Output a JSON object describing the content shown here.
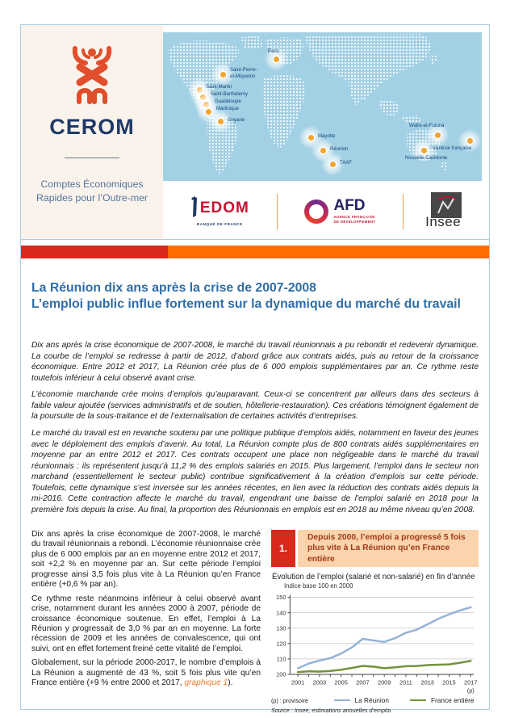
{
  "header": {
    "logo_text": "CEROM",
    "tagline_line1": "Comptes Économiques",
    "tagline_line2": "Rapides pour l’Outre-mer",
    "partners": {
      "iedom": {
        "name": "EDOM",
        "sub": "BANQUE DE FRANCE"
      },
      "afd": {
        "name": "AFD",
        "sub1": "AGENCE FRANÇAISE",
        "sub2": "DE DÉVELOPPEMENT"
      },
      "insee": {
        "name": "Insee"
      }
    }
  },
  "map": {
    "markers": [
      {
        "name": "paris",
        "label": "Paris",
        "dot": [
          140,
          33
        ],
        "label_xy": [
          130,
          21
        ]
      },
      {
        "name": "saint-pierre-et-miquelon",
        "label": "Saint-Pierre-\net-Miquelon",
        "dot": [
          74,
          52
        ],
        "label_xy": [
          83,
          44
        ]
      },
      {
        "name": "saint-martin",
        "label": "Saint-Martin",
        "dot": [
          45,
          71
        ],
        "label_xy": [
          53,
          65
        ]
      },
      {
        "name": "saint-barthelemy",
        "label": "Saint-Barthélemy",
        "dot": [
          49,
          80
        ],
        "label_xy": [
          59,
          74
        ]
      },
      {
        "name": "guadeloupe",
        "label": "Guadeloupe",
        "dot": [
          53,
          89
        ],
        "label_xy": [
          64,
          83
        ]
      },
      {
        "name": "martinique",
        "label": "Martinique",
        "dot": [
          56,
          98
        ],
        "label_xy": [
          66,
          92
        ]
      },
      {
        "name": "guyane",
        "label": "Guyane",
        "dot": [
          71,
          110
        ],
        "label_xy": [
          80,
          106
        ]
      },
      {
        "name": "mayotte",
        "label": "Mayotte",
        "dot": [
          183,
          130
        ],
        "label_xy": [
          192,
          126
        ]
      },
      {
        "name": "reunion",
        "label": "Réunion",
        "dot": [
          198,
          146
        ],
        "label_xy": [
          207,
          142
        ]
      },
      {
        "name": "taaf",
        "label": "TAAF",
        "dot": [
          210,
          163
        ],
        "label_xy": [
          219,
          159
        ]
      },
      {
        "name": "wallis-et-futuna",
        "label": "Wallis-et-Futuna",
        "dot": [
          340,
          127
        ],
        "label_xy": [
          305,
          113
        ]
      },
      {
        "name": "polynesie-francaise",
        "label": "Polynésie française",
        "dot": [
          380,
          134
        ],
        "label_xy": [
          330,
          141
        ]
      },
      {
        "name": "nouvelle-caledonie",
        "label": "Nouvelle-Calédonie",
        "dot": [
          323,
          146
        ],
        "label_xy": [
          300,
          153
        ]
      }
    ]
  },
  "title": {
    "line1": "La Réunion dix ans après la crise de 2007-2008",
    "line2": "L’emploi public influe fortement sur la dynamique du marché du travail"
  },
  "intro": {
    "paragraphs": [
      "Dix ans après la crise économique de 2007-2008, le marché du travail réunionnais a pu rebondir et redevenir dynamique. La courbe de l’emploi se redresse à partir de 2012, d’abord grâce aux contrats aidés, puis au retour de la croissance économique. Entre 2012 et 2017, La Réunion crée plus de 6 000 emplois supplémentaires par an. Ce rythme reste toutefois inférieur à celui observé avant crise.",
      "L’économie marchande crée moins d’emplois qu’auparavant. Ceux-ci se concentrent par ailleurs dans des secteurs à faible valeur ajoutée (services administratifs et de soutien, hôtellerie-restauration). Ces créations témoignent également de la poursuite de la sous-traitance et de l’externalisation de certaines activités d’entreprises.",
      "Le marché du travail est en revanche soutenu par une politique publique d’emplois aidés, notamment en faveur des jeunes avec le déploiement des emplois d’avenir. Au total, La Réunion compte plus de 800 contrats aidés supplémentaires en moyenne par an entre 2012 et 2017. Ces contrats occupent une place non négligeable dans le marché du travail réunionnais : ils représentent jusqu’à 11,2 % des emplois salariés en 2015. Plus largement, l’emploi dans le secteur non marchand (essentiellement le secteur public) contribue significativement à la création d’emplois sur cette période. Toutefois, cette dynamique s’est inversée sur les années récentes, en lien avec la réduction des contrats aidés depuis la mi-2016. Cette contraction affecte le marché du travail, engendrant une baisse de l’emploi salarié en 2018 pour la première fois depuis la crise. Au final, la proportion des Réunionnais en emplois est en 2018 au même niveau qu’en 2008."
    ]
  },
  "col_left": {
    "p1": "Dix ans après la crise économique de 2007-2008, le marché du travail réunionnais a rebondi. L’économie réunionnaise crée plus de 6 000 emplois par an en moyenne entre 2012 et 2017, soit +2,2 % en moyenne par an. Sur cette période l’emploi progresse ainsi 3,5 fois plus vite à La Réunion qu’en France entière (+0,6 % par an).",
    "p2": "Ce rythme reste néanmoins inférieur à celui observé avant crise, notamment durant les années 2000 à 2007, période de croissance économique soutenue. En effet, l’emploi à La Réunion y progressait de 3,0 % par an en moyenne. La forte récession de 2009 et les années de convalescence, qui ont suivi, ont en effet fortement freiné cette vitalité de l’emploi.",
    "p3_before": "Globalement, sur la période 2000-2017, le nombre d’emplois à La Réunion a augmenté de 43 %, soit 5 fois plus vite qu’en France entière (+9 % entre 2000 et 2017, ",
    "p3_link": "graphique 1",
    "p3_after": ")."
  },
  "graph_box": {
    "number": "1.",
    "heading": "Depuis 2000, l’emploi a progressé 5 fois plus vite à La Réunion qu’en France entière"
  },
  "chart_data": {
    "type": "line",
    "title": "Évolution de l’emploi (salarié et non-salarié) en fin d’année",
    "subtitle": "Indice base 100 en 2000",
    "x": [
      2001,
      2002,
      2003,
      2004,
      2005,
      2006,
      2007,
      2008,
      2009,
      2010,
      2011,
      2012,
      2013,
      2014,
      2015,
      2016,
      2017
    ],
    "xtick_labels": [
      "2001",
      "2003",
      "2005",
      "2007",
      "2009",
      "2011",
      "2013",
      "2015",
      "2017"
    ],
    "x_extra_label": "(p)",
    "ylim": [
      100,
      150
    ],
    "ytick_step": 10,
    "grid": true,
    "legend_position": "bottom",
    "series": [
      {
        "name": "La Réunion",
        "color": "#95b3d7",
        "values": [
          104,
          107,
          109,
          110.5,
          113.5,
          117.5,
          123,
          122,
          121,
          123.5,
          127,
          129,
          132.5,
          136,
          139,
          141.5,
          143.5
        ]
      },
      {
        "name": "France entière",
        "color": "#76923c",
        "values": [
          101.5,
          102,
          101.8,
          102.2,
          103,
          104.2,
          105.5,
          105,
          104,
          104.6,
          105.3,
          105.4,
          106,
          106.3,
          106.5,
          107.5,
          108.8
        ]
      }
    ],
    "footnotes": [
      "(p) : provisoire",
      "Source : Insee, estimations annuelles d’emploi"
    ]
  },
  "colors": {
    "bar_red": "#da291c",
    "bar_orange": "#ff6b00",
    "title_blue": "#2e6da8",
    "link_orange": "#ed7d31",
    "badge_red": "#d9291c",
    "band_bg": "#fbd3ad",
    "band_text": "#9e3a1a",
    "map_bg": "#a2d0e4",
    "marker_orange": "#f2a52f",
    "panel_cream": "#faf3ec",
    "frame_blue": "#aacfe2",
    "line_reunion": "#95b3d7",
    "line_france": "#76923c"
  }
}
